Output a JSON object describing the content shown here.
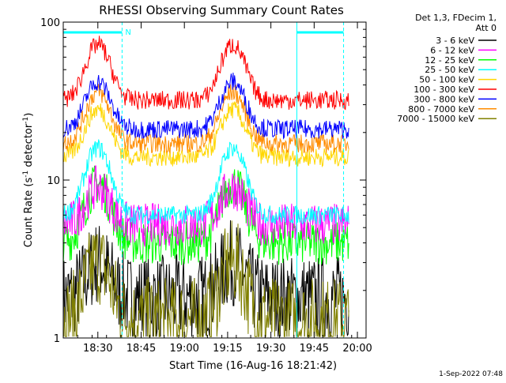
{
  "chart_data": {
    "type": "line",
    "title": "RHESSI Observing Summary Count Rates",
    "xlabel": "Start Time (16-Aug-16 18:21:42)",
    "ylabel_prefix": "Count Rate (s",
    "ylabel_exp": "-1",
    "ylabel_suffix": " detector",
    "ylabel_exp2": "-1",
    "ylabel_close": ")",
    "y_scale": "log",
    "ylim": [
      1,
      100
    ],
    "xlim_minutes": [
      18.3,
      20.05
    ],
    "x_ticks": [
      {
        "label": "18:30",
        "value": 18.5
      },
      {
        "label": "18:45",
        "value": 18.75
      },
      {
        "label": "19:00",
        "value": 19.0
      },
      {
        "label": "19:15",
        "value": 19.25
      },
      {
        "label": "19:30",
        "value": 19.5
      },
      {
        "label": "19:45",
        "value": 19.75
      },
      {
        "label": "20:00",
        "value": 20.0
      }
    ],
    "y_ticks": [
      {
        "label": "1",
        "value": 1
      },
      {
        "label": "10",
        "value": 10
      },
      {
        "label": "100",
        "value": 100
      }
    ],
    "legend_header": [
      "Det 1,3, FDecim 1,",
      "Att 0"
    ],
    "legend_placement": "right",
    "series": [
      {
        "name": "3 - 6 keV",
        "color": "#000000",
        "base": 1.8,
        "peak": 3.0
      },
      {
        "name": "6 - 12 keV",
        "color": "#ff00ff",
        "base": 5.2,
        "peak": 9.0
      },
      {
        "name": "12 - 25 keV",
        "color": "#00ff00",
        "base": 4.0,
        "peak": 9.5
      },
      {
        "name": "25 - 50 keV",
        "color": "#00ffff",
        "base": 6.0,
        "peak": 16.0
      },
      {
        "name": "50 - 100 keV",
        "color": "#ffd700",
        "base": 14.0,
        "peak": 28.0
      },
      {
        "name": "100 - 300 keV",
        "color": "#ff0000",
        "base": 32.0,
        "peak": 72.0
      },
      {
        "name": "300 - 800 keV",
        "color": "#0000ff",
        "base": 21.0,
        "peak": 42.0
      },
      {
        "name": "800 - 7000 keV",
        "color": "#ff8c00",
        "base": 17.0,
        "peak": 36.0
      },
      {
        "name": "7000 - 15000 keV",
        "color": "#808000",
        "base": 1.3,
        "peak": 3.0
      }
    ],
    "flags": [
      {
        "label": "N",
        "from": 18.3,
        "to": 18.64
      },
      {
        "label": "",
        "from": 19.65,
        "to": 19.92
      }
    ],
    "flag_color": "#00ffff",
    "footer_date": "1-Sep-2022 07:48"
  }
}
